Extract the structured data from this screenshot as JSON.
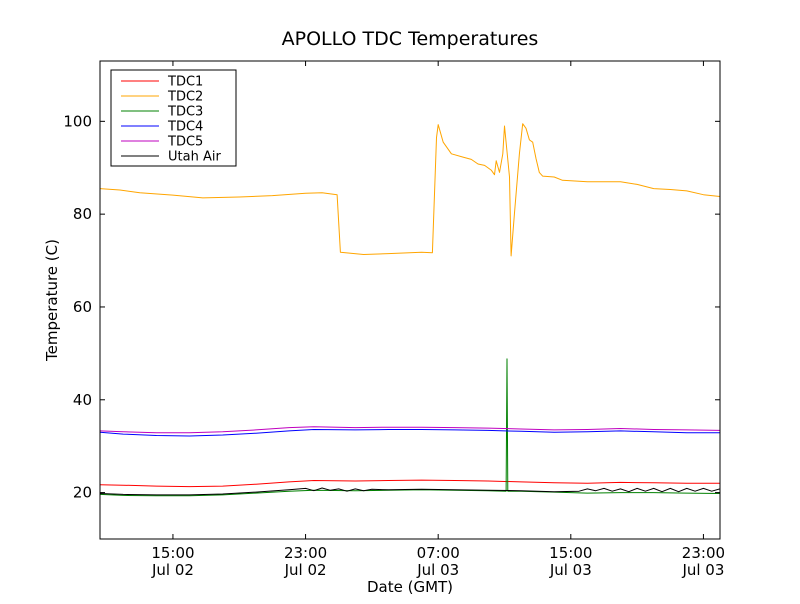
{
  "chart_data": {
    "type": "line",
    "title": "APOLLO TDC Temperatures",
    "xlabel": "Date (GMT)",
    "ylabel": "Temperature (C)",
    "xlim": [
      10.6,
      48.0
    ],
    "ylim": [
      10,
      113
    ],
    "grid": false,
    "legend_position": "upper-left",
    "y_ticks": [
      {
        "value": 20,
        "label": "20"
      },
      {
        "value": 40,
        "label": "40"
      },
      {
        "value": 60,
        "label": "60"
      },
      {
        "value": 80,
        "label": "80"
      },
      {
        "value": 100,
        "label": "100"
      }
    ],
    "x_ticks": [
      {
        "value": 15,
        "line1": "15:00",
        "line2": "Jul 02"
      },
      {
        "value": 23,
        "line1": "23:00",
        "line2": "Jul 02"
      },
      {
        "value": 31,
        "line1": "07:00",
        "line2": "Jul 03"
      },
      {
        "value": 39,
        "line1": "15:00",
        "line2": "Jul 03"
      },
      {
        "value": 47,
        "line1": "23:00",
        "line2": "Jul 03"
      }
    ],
    "series": [
      {
        "name": "TDC1",
        "color": "#ff0000",
        "points": [
          [
            10.6,
            21.7
          ],
          [
            12,
            21.6
          ],
          [
            14,
            21.4
          ],
          [
            16,
            21.3
          ],
          [
            18,
            21.4
          ],
          [
            20,
            21.8
          ],
          [
            22,
            22.3
          ],
          [
            23.5,
            22.6
          ],
          [
            26,
            22.5
          ],
          [
            28,
            22.6
          ],
          [
            30,
            22.7
          ],
          [
            32,
            22.6
          ],
          [
            34,
            22.5
          ],
          [
            36,
            22.3
          ],
          [
            38,
            22.1
          ],
          [
            40,
            22.0
          ],
          [
            42,
            22.2
          ],
          [
            44,
            22.1
          ],
          [
            46,
            22.0
          ],
          [
            48,
            22.0
          ]
        ]
      },
      {
        "name": "TDC2",
        "color": "#ffa500",
        "points": [
          [
            10.6,
            85.5
          ],
          [
            11.8,
            85.2
          ],
          [
            13,
            84.6
          ],
          [
            15,
            84.1
          ],
          [
            16.8,
            83.5
          ],
          [
            19,
            83.7
          ],
          [
            21,
            84.0
          ],
          [
            23,
            84.5
          ],
          [
            24,
            84.6
          ],
          [
            24.9,
            84.2
          ],
          [
            25.1,
            71.8
          ],
          [
            26.5,
            71.3
          ],
          [
            28,
            71.5
          ],
          [
            30,
            71.8
          ],
          [
            30.65,
            71.7
          ],
          [
            30.9,
            96.5
          ],
          [
            31.0,
            99.3
          ],
          [
            31.3,
            95.5
          ],
          [
            31.8,
            93.0
          ],
          [
            32.5,
            92.3
          ],
          [
            33,
            91.8
          ],
          [
            33.4,
            90.8
          ],
          [
            33.8,
            90.5
          ],
          [
            34.2,
            89.5
          ],
          [
            34.4,
            88.5
          ],
          [
            34.5,
            91.5
          ],
          [
            34.7,
            89.0
          ],
          [
            34.9,
            93.0
          ],
          [
            35.0,
            99.0
          ],
          [
            35.15,
            93.5
          ],
          [
            35.3,
            88.0
          ],
          [
            35.4,
            71.0
          ],
          [
            35.6,
            80.0
          ],
          [
            35.9,
            93.0
          ],
          [
            36.1,
            99.5
          ],
          [
            36.3,
            98.5
          ],
          [
            36.5,
            96.0
          ],
          [
            36.7,
            95.5
          ],
          [
            36.9,
            92.0
          ],
          [
            37.1,
            89.0
          ],
          [
            37.3,
            88.2
          ],
          [
            38,
            88.0
          ],
          [
            38.5,
            87.3
          ],
          [
            40,
            87.0
          ],
          [
            41,
            87.0
          ],
          [
            42,
            87.0
          ],
          [
            43,
            86.4
          ],
          [
            44,
            85.5
          ],
          [
            45,
            85.3
          ],
          [
            46,
            85.0
          ],
          [
            47,
            84.2
          ],
          [
            48,
            83.8
          ]
        ]
      },
      {
        "name": "TDC3",
        "color": "#008000",
        "points": [
          [
            10.6,
            19.6
          ],
          [
            12,
            19.4
          ],
          [
            14,
            19.3
          ],
          [
            16,
            19.3
          ],
          [
            18,
            19.5
          ],
          [
            20,
            19.9
          ],
          [
            22,
            20.3
          ],
          [
            23.5,
            20.5
          ],
          [
            26,
            20.4
          ],
          [
            28,
            20.5
          ],
          [
            30,
            20.6
          ],
          [
            32,
            20.5
          ],
          [
            34,
            20.4
          ],
          [
            35.1,
            20.3
          ],
          [
            35.15,
            48.8
          ],
          [
            35.2,
            20.3
          ],
          [
            36,
            20.3
          ],
          [
            38,
            20.1
          ],
          [
            40,
            19.9
          ],
          [
            42,
            20.0
          ],
          [
            44,
            20.0
          ],
          [
            46,
            19.9
          ],
          [
            48,
            19.8
          ]
        ]
      },
      {
        "name": "TDC4",
        "color": "#0000ff",
        "points": [
          [
            10.6,
            33.0
          ],
          [
            12,
            32.6
          ],
          [
            14,
            32.3
          ],
          [
            16,
            32.2
          ],
          [
            18,
            32.4
          ],
          [
            20,
            32.8
          ],
          [
            22,
            33.3
          ],
          [
            23.5,
            33.6
          ],
          [
            26,
            33.5
          ],
          [
            28,
            33.6
          ],
          [
            30,
            33.6
          ],
          [
            32,
            33.5
          ],
          [
            34,
            33.4
          ],
          [
            36,
            33.2
          ],
          [
            38,
            33.0
          ],
          [
            40,
            33.1
          ],
          [
            42,
            33.3
          ],
          [
            44,
            33.1
          ],
          [
            46,
            32.9
          ],
          [
            48,
            32.9
          ]
        ]
      },
      {
        "name": "TDC5",
        "color": "#bf00bf",
        "points": [
          [
            10.6,
            33.3
          ],
          [
            12,
            33.1
          ],
          [
            14,
            32.9
          ],
          [
            16,
            32.9
          ],
          [
            18,
            33.1
          ],
          [
            20,
            33.5
          ],
          [
            22,
            34.0
          ],
          [
            23.5,
            34.2
          ],
          [
            26,
            34.0
          ],
          [
            28,
            34.1
          ],
          [
            30,
            34.1
          ],
          [
            32,
            34.0
          ],
          [
            34,
            33.9
          ],
          [
            36,
            33.7
          ],
          [
            38,
            33.5
          ],
          [
            40,
            33.6
          ],
          [
            42,
            33.8
          ],
          [
            44,
            33.6
          ],
          [
            46,
            33.5
          ],
          [
            48,
            33.4
          ]
        ]
      },
      {
        "name": "Utah Air",
        "color": "#000000",
        "points": [
          [
            10.6,
            19.8
          ],
          [
            12,
            19.6
          ],
          [
            14,
            19.5
          ],
          [
            16,
            19.5
          ],
          [
            18,
            19.7
          ],
          [
            20,
            20.1
          ],
          [
            22,
            20.6
          ],
          [
            23,
            20.9
          ],
          [
            23.5,
            20.4
          ],
          [
            24,
            21.0
          ],
          [
            24.5,
            20.5
          ],
          [
            25,
            20.8
          ],
          [
            25.5,
            20.3
          ],
          [
            26,
            20.8
          ],
          [
            26.5,
            20.4
          ],
          [
            27,
            20.7
          ],
          [
            28,
            20.6
          ],
          [
            30,
            20.7
          ],
          [
            32,
            20.6
          ],
          [
            34,
            20.5
          ],
          [
            36,
            20.4
          ],
          [
            38,
            20.2
          ],
          [
            39.5,
            20.3
          ],
          [
            40,
            20.8
          ],
          [
            40.5,
            20.4
          ],
          [
            41,
            20.9
          ],
          [
            41.5,
            20.3
          ],
          [
            42,
            20.8
          ],
          [
            42.5,
            20.2
          ],
          [
            43,
            20.9
          ],
          [
            43.5,
            20.3
          ],
          [
            44,
            20.9
          ],
          [
            44.5,
            20.2
          ],
          [
            45,
            20.9
          ],
          [
            45.5,
            20.2
          ],
          [
            46,
            20.9
          ],
          [
            46.5,
            20.3
          ],
          [
            47,
            20.9
          ],
          [
            47.5,
            20.3
          ],
          [
            48,
            20.8
          ]
        ]
      }
    ]
  }
}
